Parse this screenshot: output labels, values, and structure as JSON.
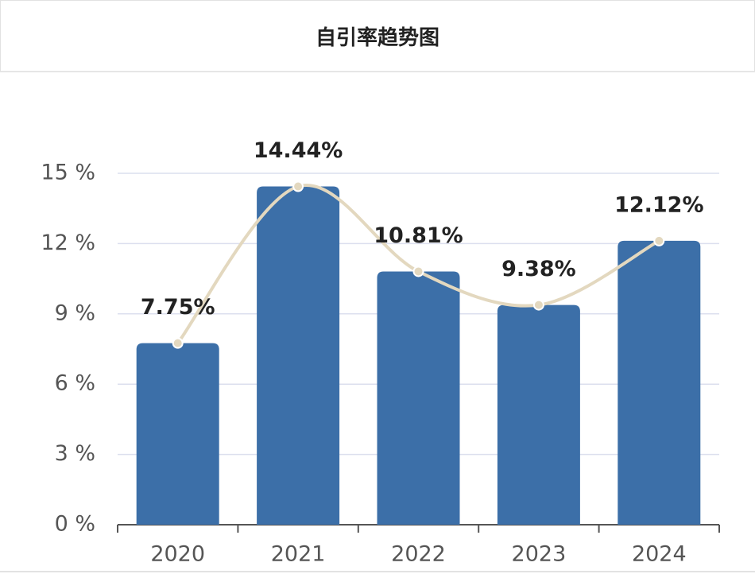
{
  "chart_data": {
    "type": "bar",
    "title": "自引率趋势图",
    "categories": [
      "2020",
      "2021",
      "2022",
      "2023",
      "2024"
    ],
    "values": [
      7.75,
      14.44,
      10.81,
      9.38,
      12.12
    ],
    "value_labels": [
      "7.75%",
      "14.44%",
      "10.81%",
      "9.38%",
      "12.12%"
    ],
    "color": "#3c6fa8",
    "line_overlay": true,
    "line_color": "#e3d8bf",
    "ylim": [
      0,
      15
    ],
    "yticks": [
      {
        "value": 0,
        "label": "0 %"
      },
      {
        "value": 3,
        "label": "3 %"
      },
      {
        "value": 6,
        "label": "6 %"
      },
      {
        "value": 9,
        "label": "9 %"
      },
      {
        "value": 12,
        "label": "12 %"
      },
      {
        "value": 15,
        "label": "15 %"
      }
    ],
    "grid": true
  }
}
